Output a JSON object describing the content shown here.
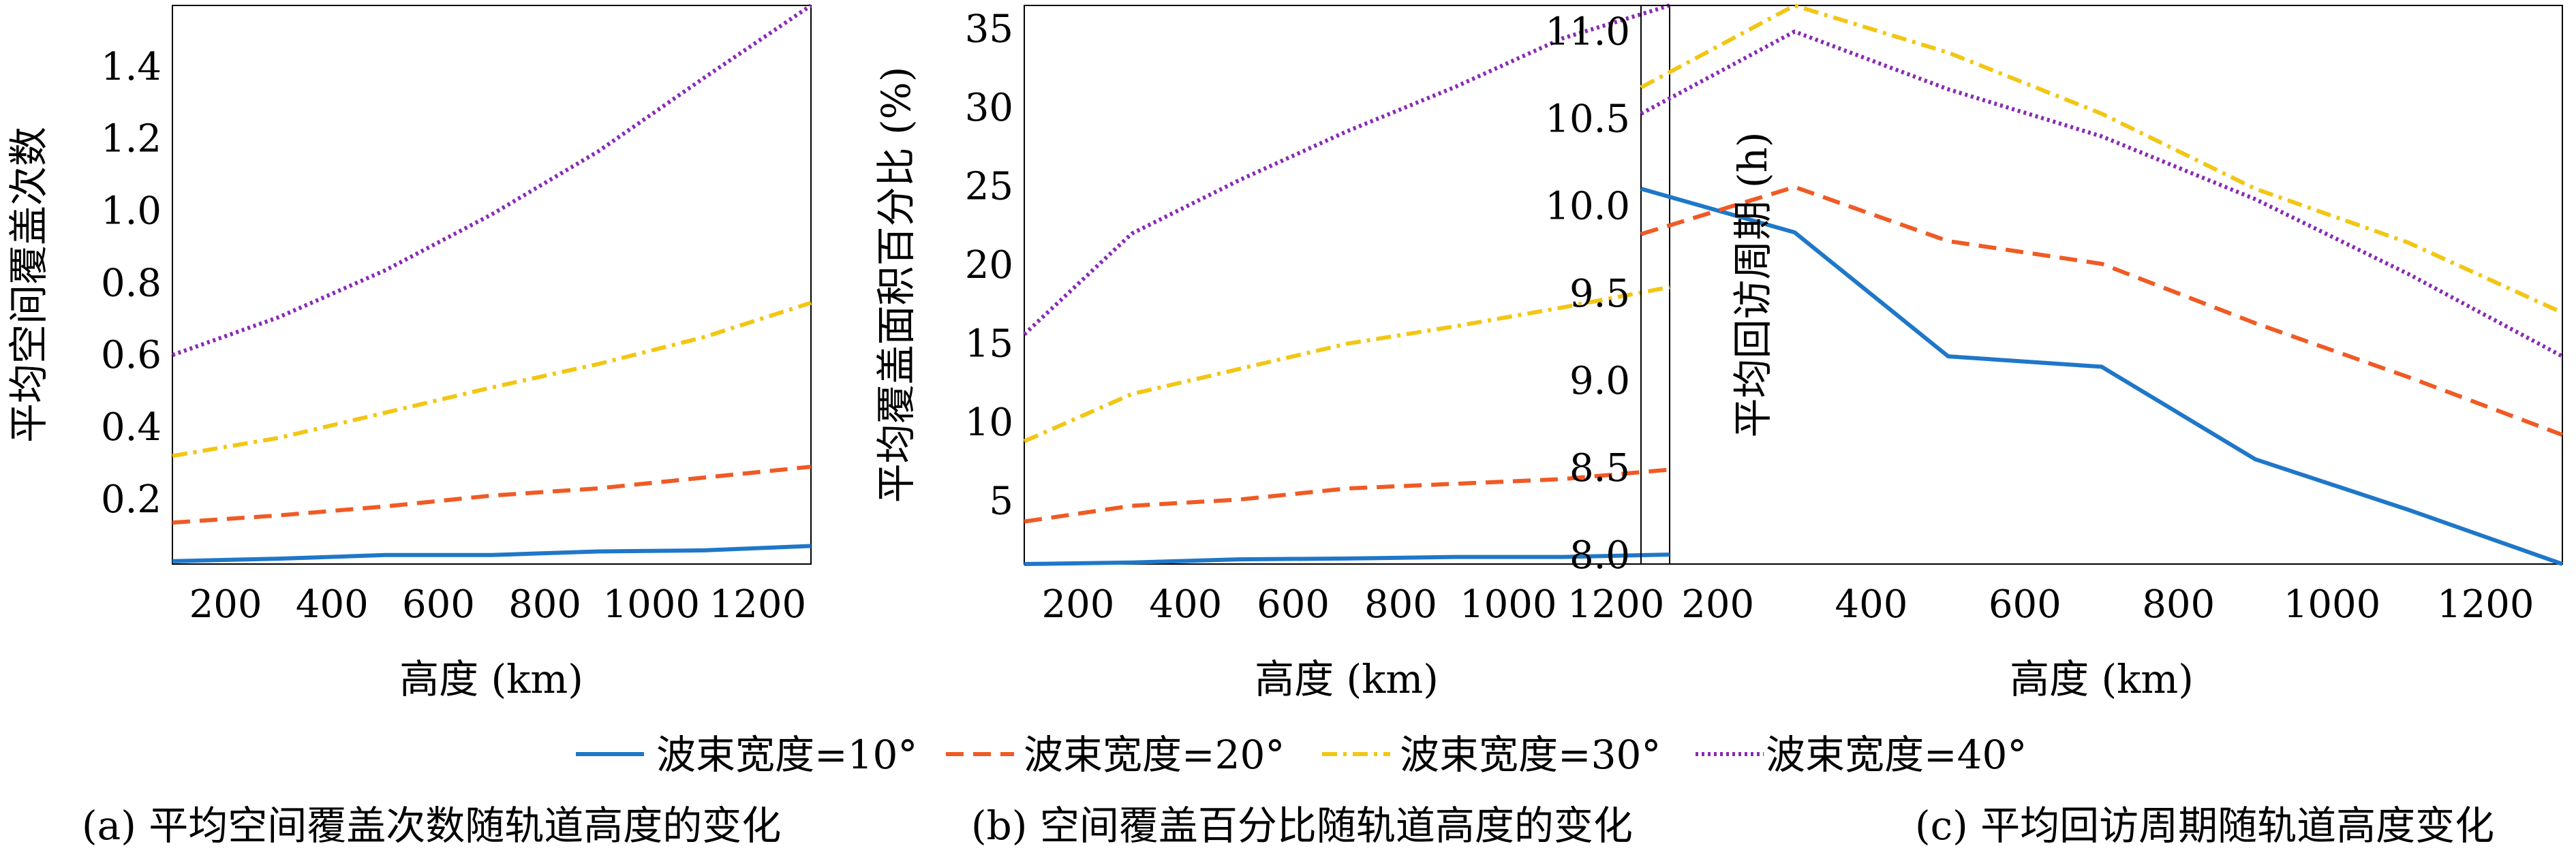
{
  "legend": {
    "items": [
      {
        "label": "波束宽度=10°",
        "color": "#1f77c8",
        "dash": "solid"
      },
      {
        "label": "波束宽度=20°",
        "color": "#f05a24",
        "dash": "dashed"
      },
      {
        "label": "波束宽度=30°",
        "color": "#f2c614",
        "dash": "dashdot"
      },
      {
        "label": "波束宽度=40°",
        "color": "#8a2bb4",
        "dash": "dotted"
      }
    ]
  },
  "chart_data": [
    {
      "type": "line",
      "caption": "(a) 平均空间覆盖次数随轨道高度的变化",
      "xlabel": "高度 (km)",
      "ylabel": "平均空间覆盖次数",
      "xlim": [
        100,
        1300
      ],
      "ylim": [
        0.02,
        1.57
      ],
      "xticks": [
        200,
        400,
        600,
        800,
        1000,
        1200
      ],
      "yticks": [
        0.2,
        0.4,
        0.6,
        0.8,
        1.0,
        1.2,
        1.4
      ],
      "ytick_labels": [
        "0.2",
        "0.4",
        "0.6",
        "0.8",
        "1.0",
        "1.2",
        "1.4"
      ],
      "x": [
        100,
        300,
        500,
        700,
        900,
        1100,
        1300
      ],
      "series": [
        {
          "name": "波束宽度=10°",
          "values": [
            0.028,
            0.035,
            0.045,
            0.045,
            0.055,
            0.058,
            0.07
          ]
        },
        {
          "name": "波束宽度=20°",
          "values": [
            0.135,
            0.155,
            0.18,
            0.21,
            0.23,
            0.26,
            0.29
          ]
        },
        {
          "name": "波束宽度=30°",
          "values": [
            0.32,
            0.37,
            0.44,
            0.51,
            0.575,
            0.65,
            0.745
          ]
        },
        {
          "name": "波束宽度=40°",
          "values": [
            0.6,
            0.705,
            0.835,
            0.99,
            1.165,
            1.37,
            1.57
          ]
        }
      ]
    },
    {
      "type": "line",
      "caption": "(b) 空间覆盖百分比随轨道高度的变化",
      "xlabel": "高度 (km)",
      "ylabel": "平均覆盖面积百分比 (%)",
      "xlim": [
        100,
        1300
      ],
      "ylim": [
        1.0,
        36.5
      ],
      "xticks": [
        200,
        400,
        600,
        800,
        1000,
        1200
      ],
      "yticks": [
        5,
        10,
        15,
        20,
        25,
        30,
        35
      ],
      "ytick_labels": [
        "5",
        "10",
        "15",
        "20",
        "25",
        "30",
        "35"
      ],
      "x": [
        100,
        300,
        500,
        700,
        900,
        1100,
        1300
      ],
      "series": [
        {
          "name": "波束宽度=10°",
          "values": [
            1.0,
            1.1,
            1.3,
            1.35,
            1.45,
            1.45,
            1.6
          ]
        },
        {
          "name": "波束宽度=20°",
          "values": [
            3.7,
            4.7,
            5.1,
            5.8,
            6.1,
            6.4,
            7.0
          ]
        },
        {
          "name": "波束宽度=30°",
          "values": [
            8.8,
            11.8,
            13.4,
            15.0,
            16.1,
            17.3,
            18.6
          ]
        },
        {
          "name": "波束宽度=40°",
          "values": [
            15.6,
            22.0,
            25.4,
            28.5,
            31.3,
            34.4,
            36.5
          ]
        }
      ]
    },
    {
      "type": "line",
      "caption": "(c) 平均回访周期随轨道高度变化",
      "xlabel": "高度 (km)",
      "ylabel": "平均回访周期 (h)",
      "xlim": [
        100,
        1300
      ],
      "ylim": [
        7.95,
        11.15
      ],
      "xticks": [
        200,
        400,
        600,
        800,
        1000,
        1200
      ],
      "yticks": [
        8.0,
        8.5,
        9.0,
        9.5,
        10.0,
        10.5,
        11.0
      ],
      "ytick_labels": [
        "8.0",
        "8.5",
        "9.0",
        "9.5",
        "10.0",
        "10.5",
        "11.0"
      ],
      "x": [
        100,
        300,
        500,
        700,
        900,
        1100,
        1300
      ],
      "series": [
        {
          "name": "波束宽度=10°",
          "values": [
            10.1,
            9.85,
            9.14,
            9.08,
            8.55,
            8.26,
            7.95
          ]
        },
        {
          "name": "波束宽度=20°",
          "values": [
            9.84,
            10.11,
            9.8,
            9.67,
            9.33,
            9.02,
            8.69
          ]
        },
        {
          "name": "波束宽度=30°",
          "values": [
            10.68,
            11.15,
            10.88,
            10.53,
            10.1,
            9.79,
            9.39
          ]
        },
        {
          "name": "波束宽度=40°",
          "values": [
            10.53,
            11.0,
            10.67,
            10.4,
            10.04,
            9.61,
            9.14
          ]
        }
      ]
    }
  ]
}
